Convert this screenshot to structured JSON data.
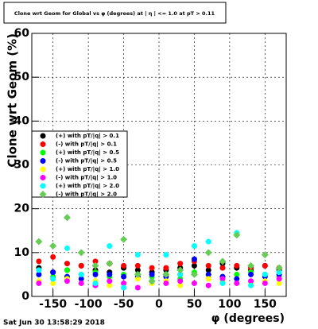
{
  "chart_data": {
    "type": "scatter",
    "title": "Clone wrt Geom for Global vs φ (degrees) at | η | <= 1.0 at pT > 0.11",
    "y_label": "Clone wrt  Geom (%)",
    "x_label": "φ (degrees)",
    "date_stamp": "Sat Jun 30 13:58:29 2018",
    "xlim": [
      -180,
      180
    ],
    "ylim": [
      0,
      60
    ],
    "xticks": [
      -150,
      -100,
      -50,
      0,
      50,
      100,
      150
    ],
    "yticks": [
      0,
      10,
      20,
      30,
      40,
      50,
      60
    ],
    "grid": true,
    "x": [
      -170,
      -150,
      -130,
      -110,
      -90,
      -70,
      -50,
      -30,
      -10,
      10,
      30,
      50,
      70,
      90,
      110,
      130,
      150,
      170
    ],
    "series": [
      {
        "name": "(+) with pT/|q| > 0.1",
        "color": "#000000",
        "marker": "circle",
        "values": [
          6.5,
          5.5,
          6,
          7,
          6,
          5.5,
          6.5,
          6,
          5.5,
          6,
          6.5,
          7,
          6,
          7.5,
          6.5,
          6,
          7,
          6
        ]
      },
      {
        "name": "(-) with pT/|q| > 0.1",
        "color": "#ff0000",
        "marker": "circle",
        "values": [
          8,
          9,
          7.5,
          7,
          8,
          7.5,
          7,
          7,
          6.5,
          6.5,
          7.5,
          8,
          7,
          6.5,
          7,
          6.5,
          7,
          6.5
        ]
      },
      {
        "name": "(+) with pT/|q| > 0.5",
        "color": "#00ff00",
        "marker": "circle",
        "values": [
          5,
          4.5,
          6,
          5,
          5.5,
          4.5,
          5,
          5,
          4.5,
          5,
          4,
          5.5,
          5,
          4.5,
          5,
          5.5,
          5,
          4.5
        ]
      },
      {
        "name": "(-) with pT/|q| > 0.5",
        "color": "#0000ff",
        "marker": "circle",
        "values": [
          5,
          5.5,
          4.5,
          4,
          5,
          5,
          4.5,
          4.5,
          5,
          4.5,
          5,
          8.5,
          5,
          4.5,
          4,
          5,
          4.5,
          5
        ]
      },
      {
        "name": "(+) with pT/|q| > 1.0",
        "color": "#ffff00",
        "marker": "circle",
        "values": [
          3.5,
          3,
          4,
          3,
          3.5,
          2.5,
          3,
          4,
          3,
          3.5,
          2.5,
          3,
          4,
          3.5,
          3,
          3,
          3.5,
          3
        ]
      },
      {
        "name": "(-) with pT/|q| > 1.0",
        "color": "#ff00ff",
        "marker": "circle",
        "values": [
          3,
          4,
          3.5,
          3,
          2.5,
          3.5,
          3,
          2,
          3.5,
          3,
          3.5,
          3,
          2.5,
          4,
          3,
          3.5,
          3,
          4
        ]
      },
      {
        "name": "(+) with pT/|q| > 2.0",
        "color": "#00ffff",
        "marker": "circle",
        "values": [
          6,
          4,
          11,
          5,
          3,
          11.5,
          2,
          9.5,
          3.5,
          9.5,
          5,
          11.5,
          12.5,
          3,
          14.5,
          2.5,
          5,
          5.5
        ]
      },
      {
        "name": "(-) with pT/|q| > 2.0",
        "color": "#66cc55",
        "marker": "diamond",
        "values": [
          12.5,
          11.5,
          18,
          10,
          7,
          7.5,
          13,
          5,
          3.5,
          5,
          6,
          5,
          10,
          8,
          14,
          7,
          9.5,
          6.5
        ]
      }
    ]
  }
}
